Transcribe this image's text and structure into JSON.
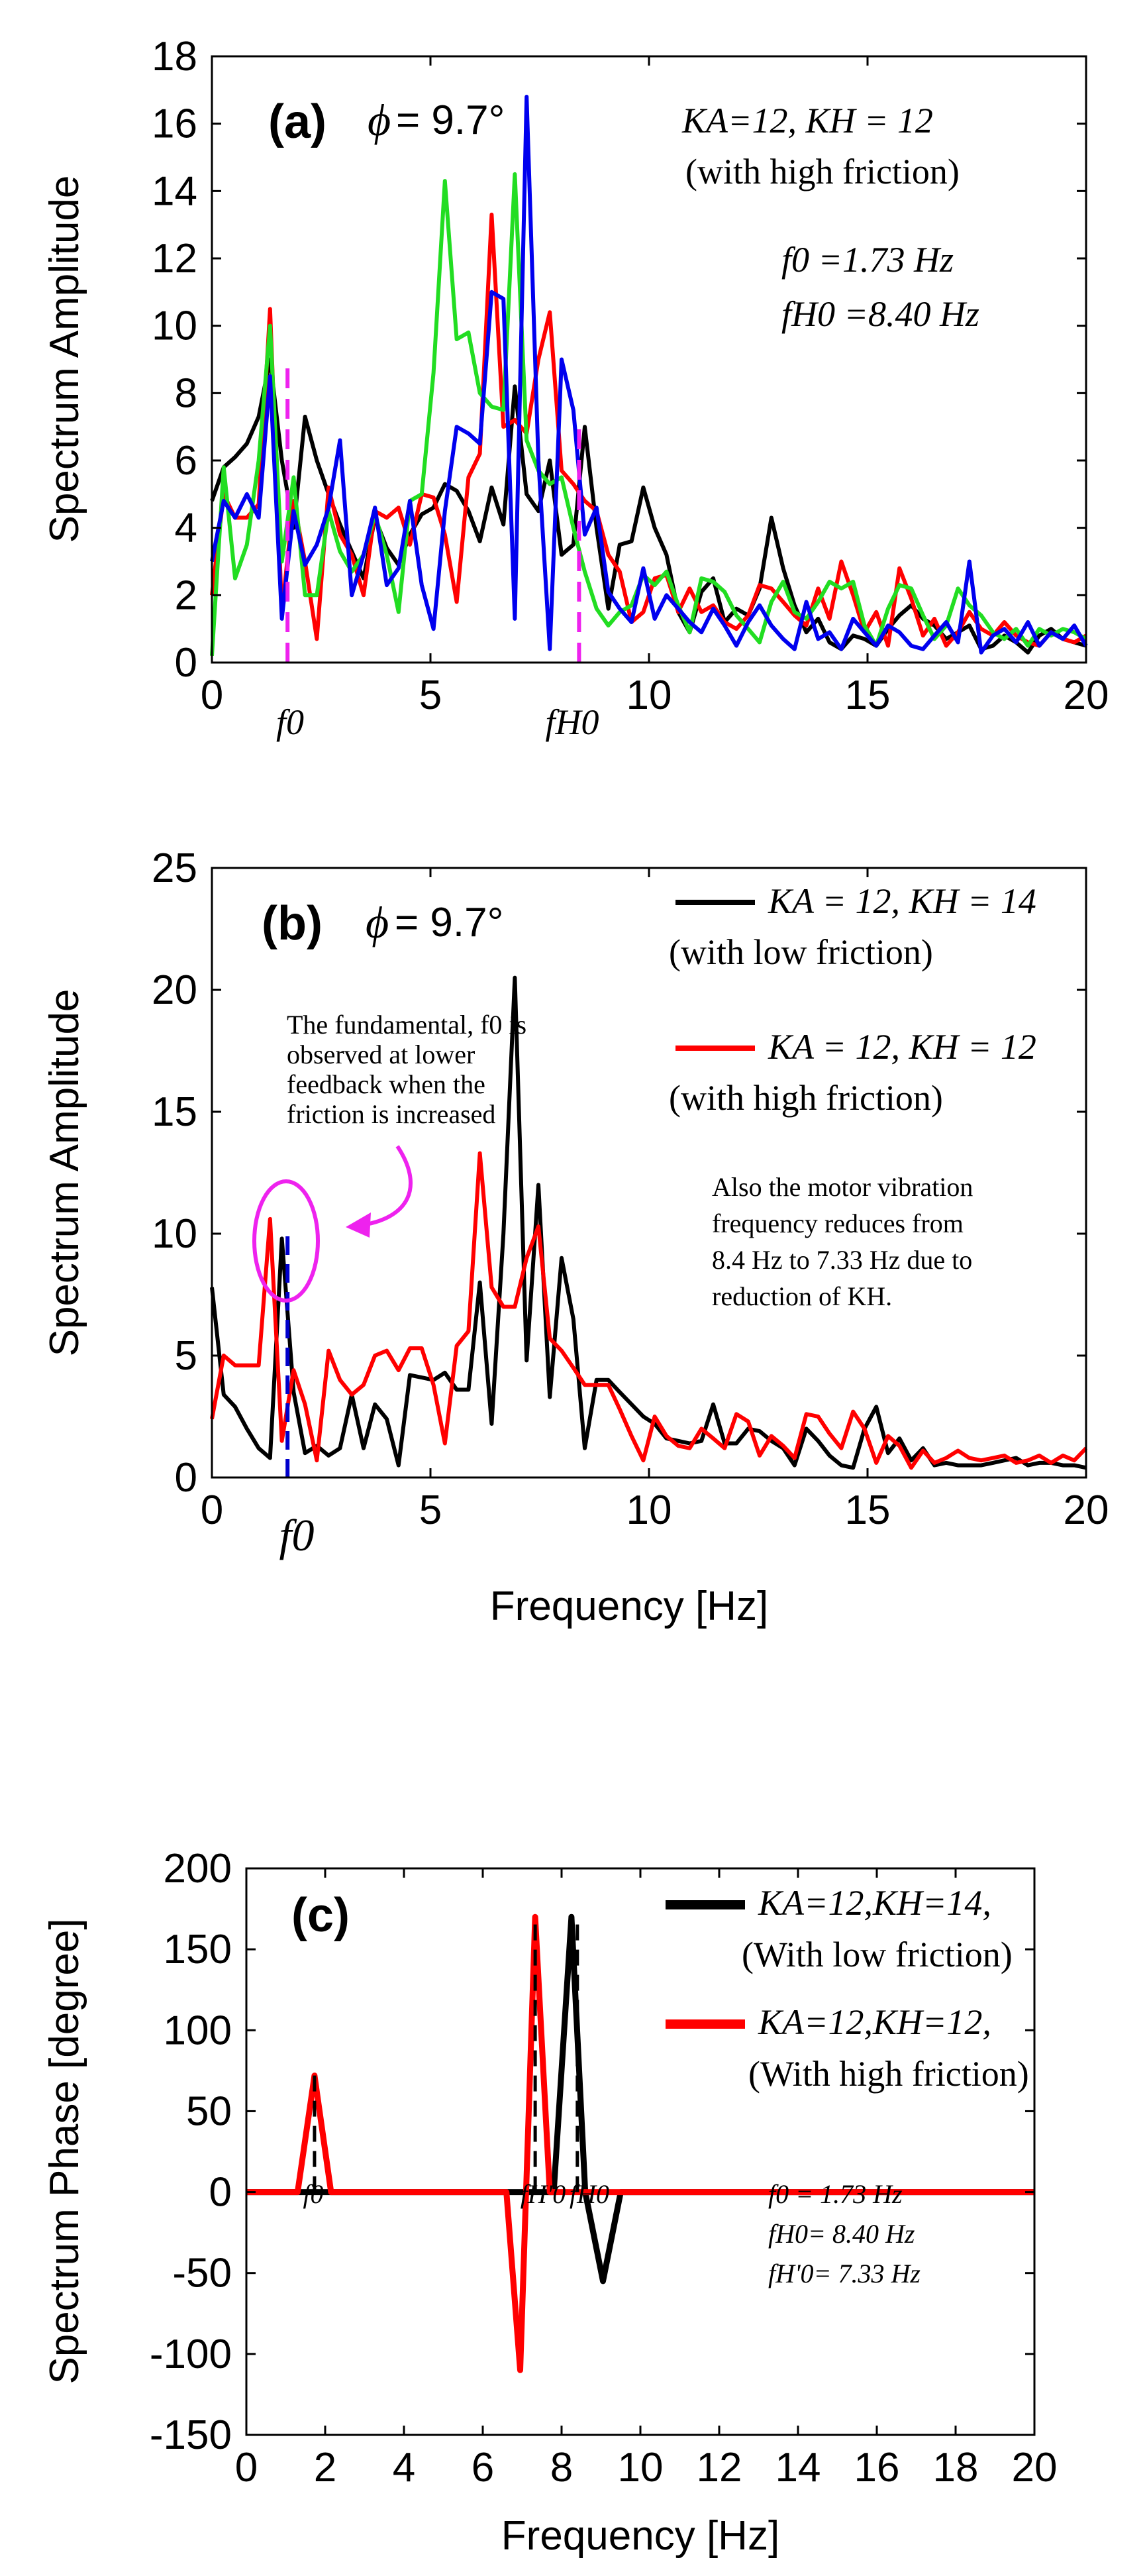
{
  "colors": {
    "black": "#000000",
    "red": "#ff0000",
    "green": "#22dd22",
    "blue": "#0000ee",
    "magenta": "#ee22ee",
    "dashed_blue": "#0000cc"
  },
  "chart_data": [
    {
      "panel": "(a)",
      "type": "line",
      "xlabel": "",
      "ylabel": "Spectrum Amplitude",
      "xlim": [
        0,
        20
      ],
      "ylim": [
        0,
        18
      ],
      "xticks": [
        "0",
        "5",
        "10",
        "15",
        "20"
      ],
      "yticks": [
        "0",
        "2",
        "4",
        "6",
        "8",
        "10",
        "12",
        "14",
        "16",
        "18"
      ],
      "phi_label": "ϕ",
      "phi_value": "= 9.7°",
      "legend_lines": [
        "KA=12, KH = 12",
        "(with high friction)"
      ],
      "freq_lines": [
        "f0 =1.73 Hz",
        "fH0 =8.40 Hz"
      ],
      "marker_labels": [
        "f0",
        "fH0"
      ],
      "markers": [
        1.73,
        8.4
      ],
      "x": [
        0,
        0.27,
        0.53,
        0.8,
        1.07,
        1.33,
        1.6,
        1.87,
        2.13,
        2.4,
        2.67,
        2.93,
        3.2,
        3.47,
        3.73,
        4.0,
        4.27,
        4.53,
        4.8,
        5.07,
        5.33,
        5.6,
        5.87,
        6.13,
        6.4,
        6.67,
        6.93,
        7.2,
        7.47,
        7.73,
        8.0,
        8.27,
        8.53,
        8.8,
        9.07,
        9.33,
        9.6,
        9.87,
        10.13,
        10.4,
        10.67,
        10.93,
        11.2,
        11.47,
        11.73,
        12.0,
        12.27,
        12.53,
        12.8,
        13.07,
        13.33,
        13.6,
        13.87,
        14.13,
        14.4,
        14.67,
        14.93,
        15.2,
        15.47,
        15.73,
        16.0,
        16.27,
        16.53,
        16.8,
        17.07,
        17.33,
        17.6,
        17.87,
        18.13,
        18.4,
        18.67,
        18.93,
        19.2,
        19.47,
        19.73,
        20.0
      ],
      "series": [
        {
          "name": "black",
          "color": "#000000",
          "values": [
            4.8,
            5.8,
            6.1,
            6.5,
            7.3,
            9.0,
            6.0,
            4.0,
            7.3,
            6.0,
            5.0,
            4.1,
            3.3,
            2.5,
            4.3,
            3.4,
            2.9,
            3.8,
            4.4,
            4.6,
            5.3,
            5.1,
            4.5,
            3.6,
            5.2,
            4.1,
            8.2,
            5.0,
            4.5,
            6.0,
            3.2,
            3.5,
            7.0,
            4.0,
            1.6,
            3.5,
            3.6,
            5.2,
            4.0,
            3.2,
            1.5,
            0.9,
            2.1,
            2.5,
            1.2,
            1.6,
            1.4,
            2.2,
            4.3,
            2.8,
            1.7,
            0.9,
            1.3,
            0.6,
            0.4,
            0.8,
            0.7,
            0.5,
            1.0,
            1.4,
            1.7,
            1.3,
            1.1,
            0.7,
            0.9,
            1.1,
            0.4,
            0.5,
            0.8,
            0.6,
            0.3,
            0.8,
            1.0,
            0.7,
            0.6,
            0.5
          ]
        },
        {
          "name": "red",
          "color": "#ff0000",
          "values": [
            2.0,
            5.0,
            4.3,
            4.3,
            4.7,
            10.5,
            1.5,
            4.8,
            3.0,
            0.7,
            5.2,
            3.8,
            3.2,
            2.0,
            4.5,
            4.3,
            4.6,
            3.5,
            5.0,
            4.9,
            3.8,
            1.8,
            5.5,
            6.2,
            13.3,
            7.0,
            7.2,
            6.8,
            9.0,
            10.4,
            5.7,
            5.3,
            4.8,
            4.5,
            3.2,
            2.7,
            1.2,
            1.5,
            2.5,
            2.6,
            1.5,
            2.2,
            1.5,
            1.7,
            1.2,
            1.0,
            1.4,
            2.3,
            2.2,
            1.8,
            1.4,
            1.1,
            2.2,
            1.3,
            3.0,
            2.0,
            0.9,
            1.5,
            0.5,
            2.8,
            1.9,
            0.8,
            1.3,
            0.5,
            0.9,
            1.5,
            1.0,
            0.8,
            1.2,
            0.8,
            0.6,
            0.5,
            0.9,
            0.7,
            0.6,
            0.8
          ]
        },
        {
          "name": "green",
          "color": "#22dd22",
          "values": [
            0.2,
            5.8,
            2.5,
            3.5,
            6.0,
            10.0,
            3.0,
            5.5,
            2.0,
            2.0,
            4.5,
            3.3,
            2.7,
            3.2,
            4.4,
            3.2,
            1.5,
            4.8,
            5.0,
            8.6,
            14.3,
            9.6,
            9.8,
            8.0,
            7.6,
            7.5,
            14.5,
            6.6,
            5.7,
            5.3,
            5.5,
            4.0,
            2.7,
            1.6,
            1.1,
            1.5,
            1.7,
            2.6,
            2.3,
            2.7,
            1.7,
            0.9,
            2.5,
            2.4,
            2.1,
            1.4,
            1.0,
            0.6,
            1.8,
            2.4,
            1.5,
            1.3,
            1.8,
            2.4,
            2.2,
            2.4,
            1.1,
            0.5,
            1.6,
            2.3,
            2.2,
            1.4,
            0.7,
            1.1,
            2.2,
            1.7,
            1.4,
            0.9,
            0.7,
            1.0,
            0.5,
            1.0,
            0.8,
            1.0,
            0.9,
            0.7
          ]
        },
        {
          "name": "blue",
          "color": "#0000ee",
          "values": [
            3.0,
            4.8,
            4.3,
            5.0,
            4.3,
            8.5,
            1.3,
            4.5,
            2.9,
            3.5,
            4.6,
            6.6,
            2.0,
            3.2,
            4.6,
            2.3,
            2.8,
            4.8,
            2.3,
            1.0,
            4.5,
            7.0,
            6.8,
            6.5,
            11.0,
            10.8,
            1.3,
            16.8,
            6.0,
            0.4,
            9.0,
            7.5,
            3.8,
            4.6,
            2.1,
            1.6,
            1.2,
            2.8,
            1.3,
            2.0,
            1.6,
            1.2,
            0.9,
            1.6,
            1.1,
            0.5,
            1.2,
            1.7,
            1.1,
            0.7,
            0.4,
            1.8,
            0.7,
            0.9,
            0.4,
            1.3,
            0.9,
            0.5,
            1.1,
            0.9,
            0.5,
            0.4,
            0.8,
            1.2,
            0.6,
            3.0,
            0.3,
            0.8,
            1.0,
            0.6,
            1.2,
            0.5,
            0.9,
            0.7,
            1.1,
            0.5
          ]
        }
      ]
    },
    {
      "panel": "(b)",
      "type": "line",
      "xlabel": "Frequency [Hz]",
      "ylabel": "Spectrum Amplitude",
      "xlim": [
        0,
        20
      ],
      "ylim": [
        0,
        25
      ],
      "xticks": [
        "0",
        "5",
        "10",
        "15",
        "20"
      ],
      "yticks": [
        "0",
        "5",
        "10",
        "15",
        "20",
        "25"
      ],
      "phi_label": "ϕ",
      "phi_value": "= 9.7°",
      "legend": [
        {
          "label": "KA = 12, KH = 14",
          "sub": "(with low friction)",
          "color": "#000000"
        },
        {
          "label": "KA = 12, KH = 12",
          "sub": "(with high friction)",
          "color": "#ff0000"
        }
      ],
      "annotation_fundamental": [
        "The fundamental, f0 is",
        "observed at lower",
        "feedback when the",
        "friction is increased"
      ],
      "annotation_motor": [
        "Also the motor vibration",
        "frequency reduces from",
        "8.4 Hz to 7.33 Hz due to",
        "reduction of KH."
      ],
      "marker_label": "f0",
      "marker": 1.73,
      "x": [
        0,
        0.27,
        0.53,
        0.8,
        1.07,
        1.33,
        1.6,
        1.87,
        2.13,
        2.4,
        2.67,
        2.93,
        3.2,
        3.47,
        3.73,
        4.0,
        4.27,
        4.53,
        4.8,
        5.07,
        5.33,
        5.6,
        5.87,
        6.13,
        6.4,
        6.67,
        6.93,
        7.2,
        7.47,
        7.73,
        8.0,
        8.27,
        8.53,
        8.8,
        9.07,
        9.33,
        9.6,
        9.87,
        10.13,
        10.4,
        10.67,
        10.93,
        11.2,
        11.47,
        11.73,
        12.0,
        12.27,
        12.53,
        12.8,
        13.07,
        13.33,
        13.6,
        13.87,
        14.13,
        14.4,
        14.67,
        14.93,
        15.2,
        15.47,
        15.73,
        16.0,
        16.27,
        16.53,
        16.8,
        17.07,
        17.33,
        17.6,
        17.87,
        18.13,
        18.4,
        18.67,
        18.93,
        19.2,
        19.47,
        19.73,
        20.0
      ],
      "series": [
        {
          "name": "KA = 12, KH = 14 (with low friction)",
          "color": "#000000",
          "values": [
            7.8,
            3.4,
            2.9,
            2.0,
            1.2,
            0.8,
            9.8,
            3.5,
            1.0,
            1.3,
            0.9,
            1.2,
            3.4,
            1.2,
            3.0,
            2.4,
            0.5,
            4.2,
            4.1,
            4.0,
            4.3,
            3.6,
            3.6,
            8.0,
            2.2,
            10.0,
            20.5,
            4.8,
            12.0,
            3.3,
            9.0,
            6.5,
            1.2,
            4.0,
            4.0,
            3.5,
            3.0,
            2.5,
            2.2,
            1.6,
            1.5,
            1.4,
            1.5,
            3.0,
            1.4,
            1.4,
            2.0,
            1.9,
            1.5,
            1.2,
            0.5,
            2.0,
            1.5,
            0.9,
            0.5,
            0.4,
            2.0,
            2.9,
            1.0,
            1.6,
            0.7,
            1.2,
            0.5,
            0.6,
            0.5,
            0.5,
            0.5,
            0.6,
            0.7,
            0.8,
            0.5,
            0.6,
            0.6,
            0.5,
            0.5,
            0.4
          ]
        },
        {
          "name": "KA = 12, KH = 12 (with high friction)",
          "color": "#ff0000",
          "values": [
            2.4,
            5.0,
            4.6,
            4.6,
            4.6,
            10.6,
            1.5,
            4.4,
            3.0,
            0.7,
            5.2,
            4.0,
            3.4,
            3.8,
            5.0,
            5.2,
            4.4,
            5.3,
            5.3,
            3.8,
            1.4,
            5.4,
            6.0,
            13.3,
            7.8,
            7.0,
            7.0,
            9.0,
            10.3,
            5.7,
            5.2,
            4.5,
            3.8,
            3.8,
            3.8,
            2.8,
            1.7,
            0.7,
            2.5,
            1.7,
            1.3,
            1.2,
            2.0,
            1.6,
            1.2,
            2.6,
            2.3,
            0.9,
            1.7,
            1.3,
            0.8,
            2.6,
            2.5,
            1.8,
            1.2,
            2.7,
            2.0,
            0.6,
            1.7,
            1.3,
            0.4,
            1.1,
            0.6,
            0.8,
            1.1,
            0.8,
            0.7,
            0.8,
            0.9,
            0.6,
            0.7,
            0.9,
            0.6,
            0.9,
            0.7,
            1.2
          ]
        }
      ]
    },
    {
      "panel": "(c)",
      "type": "line",
      "xlabel": "Frequency [Hz]",
      "ylabel": "Spectrum Phase [degree]",
      "xlim": [
        0,
        20
      ],
      "ylim": [
        -150,
        200
      ],
      "xticks": [
        "0",
        "2",
        "4",
        "6",
        "8",
        "10",
        "12",
        "14",
        "16",
        "18",
        "20"
      ],
      "yticks": [
        "-150",
        "-100",
        "-50",
        "0",
        "50",
        "100",
        "150",
        "200"
      ],
      "legend": [
        {
          "label": "KA=12,KH=14,",
          "sub": "(With low friction)",
          "color": "#000000"
        },
        {
          "label": "KA=12,KH=12,",
          "sub": "(With high friction)",
          "color": "#ff0000"
        }
      ],
      "freq_lines": [
        "f0 = 1.73 Hz",
        "fH0= 8.40 Hz",
        "fH'0= 7.33 Hz"
      ],
      "marker_labels": [
        "f0",
        "fH'0",
        "fH0"
      ],
      "markers": [
        1.73,
        7.33,
        8.4
      ],
      "series": [
        {
          "name": "KA=12,KH=14, (With low friction)",
          "color": "#000000",
          "x": [
            0,
            7.8,
            8.25,
            8.6,
            9.05,
            9.5,
            20
          ],
          "values": [
            0,
            0,
            170,
            0,
            -55,
            0,
            0
          ]
        },
        {
          "name": "KA=12,KH=12, (With high friction)",
          "color": "#ff0000",
          "x": [
            0,
            1.3,
            1.73,
            2.15,
            6.6,
            6.95,
            7.33,
            7.7,
            20
          ],
          "values": [
            0,
            0,
            72,
            0,
            0,
            -110,
            170,
            0,
            0
          ]
        }
      ]
    }
  ]
}
